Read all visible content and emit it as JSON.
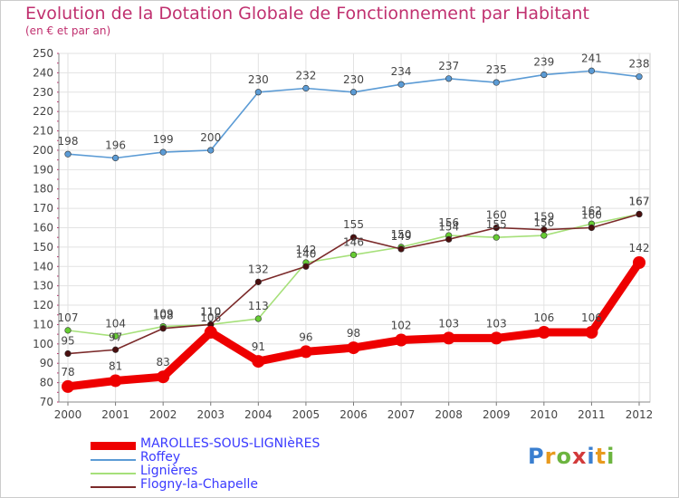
{
  "title": "Evolution de la Dotation Globale de Fonctionnement par Habitant",
  "subtitle": "(en € et par an)",
  "logo": "Proxiti",
  "chart_data": {
    "type": "line",
    "title": "Evolution de la Dotation Globale de Fonctionnement par Habitant",
    "subtitle": "(en € et par an)",
    "xlabel": "",
    "ylabel": "",
    "x": [
      "2000",
      "2001",
      "2002",
      "2003",
      "2004",
      "2005",
      "2006",
      "2007",
      "2008",
      "2009",
      "2010",
      "2011",
      "2012"
    ],
    "ylim": [
      70,
      250
    ],
    "ytick_step": 10,
    "grid": true,
    "legend_position": "bottom-left",
    "series": [
      {
        "name": "MAROLLES-SOUS-LIGNIèRES",
        "color": "#ee0000",
        "emphasis": true,
        "values": [
          78,
          81,
          83,
          106,
          91,
          96,
          98,
          102,
          103,
          103,
          106,
          106,
          142
        ]
      },
      {
        "name": "Roffey",
        "color": "#5b9bd5",
        "emphasis": false,
        "values": [
          198,
          196,
          199,
          200,
          230,
          232,
          230,
          234,
          237,
          235,
          239,
          241,
          238
        ]
      },
      {
        "name": "Lignières",
        "color": "#a6e07a",
        "marker_color": "#66cc33",
        "emphasis": false,
        "values": [
          107,
          104,
          109,
          110,
          113,
          142,
          146,
          150,
          156,
          155,
          156,
          162,
          167
        ]
      },
      {
        "name": "Flogny-la-Chapelle",
        "color": "#7b2a2a",
        "marker_color": "#4a0f0f",
        "emphasis": false,
        "values": [
          95,
          97,
          108,
          110,
          132,
          140,
          155,
          149,
          154,
          160,
          159,
          160,
          167
        ]
      }
    ]
  }
}
